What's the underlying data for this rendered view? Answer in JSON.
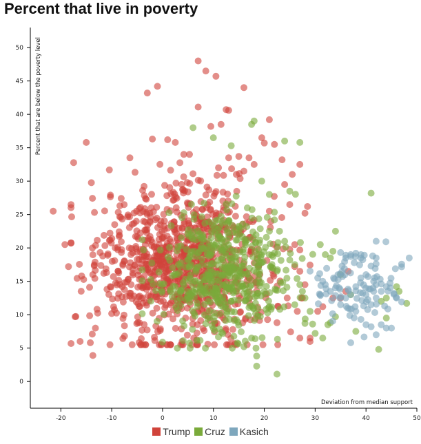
{
  "chart_data": {
    "type": "scatter",
    "title": "Percent that live in poverty",
    "xlabel": "Deviation from median support",
    "ylabel": "Percent that are below the poverty level",
    "xlim": [
      -26,
      50
    ],
    "ylim": [
      -4,
      53
    ],
    "xticks": [
      -20,
      -10,
      0,
      10,
      20,
      30,
      40,
      50
    ],
    "yticks": [
      0,
      5,
      10,
      15,
      20,
      25,
      30,
      35,
      40,
      45,
      50
    ],
    "colors": {
      "Trump": "#d0433a",
      "Cruz": "#7aaa3a",
      "Kasich": "#7ea7bd"
    },
    "legend": [
      {
        "name": "Trump",
        "color": "#d0433a"
      },
      {
        "name": "Cruz",
        "color": "#7aaa3a"
      },
      {
        "name": "Kasich",
        "color": "#7ea7bd"
      }
    ],
    "clouds": [
      {
        "series": "Trump",
        "n": 1000,
        "cx": 3.5,
        "cy": 17.5,
        "sx": 8.5,
        "sy": 6.2,
        "xmin": -18,
        "xmax": 29,
        "ymin": 5.5,
        "ymax": 34
      },
      {
        "series": "Cruz",
        "n": 520,
        "cx": 12,
        "cy": 16,
        "sx": 6.5,
        "sy": 4.5,
        "xmin": -4,
        "xmax": 31,
        "ymin": 5,
        "ymax": 30
      },
      {
        "series": "Kasich",
        "n": 85,
        "cx": 38,
        "cy": 14,
        "sx": 4.5,
        "sy": 3.3,
        "xmin": 29,
        "xmax": 47,
        "ymin": 5.5,
        "ymax": 21
      }
    ],
    "points": {
      "Trump": [
        [
          -21.5,
          25.5
        ],
        [
          -19.2,
          20.5
        ],
        [
          -18.5,
          17.2
        ],
        [
          -15,
          35.8
        ],
        [
          -13.7,
          3.9
        ],
        [
          -14.2,
          5.8
        ],
        [
          -16.2,
          6.0
        ],
        [
          -17.2,
          9.7
        ],
        [
          -13.2,
          8.0
        ],
        [
          -3,
          43.2
        ],
        [
          -1,
          44.2
        ],
        [
          7,
          48
        ],
        [
          8.5,
          46.5
        ],
        [
          10.5,
          45.7
        ],
        [
          16,
          44
        ],
        [
          7,
          41.1
        ],
        [
          12.5,
          40.7
        ],
        [
          13,
          40.6
        ],
        [
          9.5,
          38.2
        ],
        [
          21,
          39.2
        ],
        [
          11.5,
          38.5
        ],
        [
          19.5,
          36.5
        ],
        [
          27,
          32.5
        ],
        [
          25.5,
          31
        ],
        [
          -2,
          36.3
        ],
        [
          1,
          36.2
        ],
        [
          2.5,
          35.8
        ],
        [
          20,
          35.7
        ],
        [
          23.5,
          33.2
        ],
        [
          24,
          29.5
        ],
        [
          25,
          26.5
        ],
        [
          28.5,
          26.2
        ],
        [
          28,
          25.2
        ],
        [
          21,
          25.5
        ],
        [
          26,
          20.5
        ],
        [
          27,
          19.7
        ],
        [
          25,
          19.8
        ],
        [
          26,
          17.2
        ],
        [
          27,
          16.5
        ],
        [
          28,
          14.5
        ],
        [
          24.5,
          12.5
        ],
        [
          27.5,
          12.5
        ],
        [
          26.5,
          10.5
        ],
        [
          22.5,
          8.8
        ],
        [
          27,
          6.5
        ],
        [
          29,
          6.5
        ],
        [
          30.5,
          10.5
        ],
        [
          31.5,
          11.2
        ],
        [
          33.5,
          12.5
        ],
        [
          35,
          12.5
        ],
        [
          36.5,
          16.5
        ],
        [
          36,
          13.5
        ],
        [
          13,
          33.5
        ],
        [
          15,
          33.7
        ],
        [
          17,
          33.5
        ],
        [
          18,
          32.5
        ],
        [
          16,
          31.5
        ],
        [
          14.5,
          31
        ],
        [
          11,
          32
        ],
        [
          22,
          35.5
        ]
      ],
      "Cruz": [
        [
          6,
          38
        ],
        [
          10,
          36.5
        ],
        [
          13.5,
          35.3
        ],
        [
          18,
          39
        ],
        [
          17.5,
          38.5
        ],
        [
          24,
          36
        ],
        [
          27,
          35.8
        ],
        [
          19.5,
          30
        ],
        [
          25,
          28.5
        ],
        [
          21,
          28
        ],
        [
          22,
          24.2
        ],
        [
          23,
          22.5
        ],
        [
          24,
          21
        ],
        [
          25,
          18.2
        ],
        [
          26,
          17.5
        ],
        [
          27,
          14.5
        ],
        [
          28,
          12.5
        ],
        [
          26,
          11.5
        ],
        [
          27.5,
          13.5
        ],
        [
          29,
          10.5
        ],
        [
          28,
          8.7
        ],
        [
          29.5,
          8.6
        ],
        [
          30,
          7.2
        ],
        [
          31.5,
          6.5
        ],
        [
          32.5,
          8.5
        ],
        [
          33,
          8.8
        ],
        [
          34,
          9.7
        ],
        [
          41,
          28.2
        ],
        [
          38,
          7.5
        ],
        [
          42.5,
          4.8
        ],
        [
          46.5,
          13.5
        ],
        [
          48,
          11.7
        ],
        [
          46,
          14.2
        ],
        [
          44,
          12.5
        ],
        [
          44,
          9.5
        ],
        [
          43,
          12
        ],
        [
          35,
          16
        ],
        [
          37,
          13
        ],
        [
          34,
          22.5
        ],
        [
          33.5,
          19.5
        ],
        [
          31,
          20.5
        ],
        [
          32,
          19
        ],
        [
          33,
          18.5
        ],
        [
          18.5,
          2.3
        ],
        [
          18.5,
          3.8
        ],
        [
          22.5,
          1.1
        ],
        [
          16,
          5.2
        ],
        [
          17.5,
          6.5
        ]
      ],
      "Kasich": [
        [
          34,
          14
        ],
        [
          35,
          19.3
        ],
        [
          36,
          18.5
        ],
        [
          37,
          19
        ],
        [
          38,
          19.2
        ],
        [
          39,
          18.5
        ],
        [
          39,
          19
        ],
        [
          42,
          21
        ],
        [
          42,
          18.5
        ],
        [
          40,
          16
        ],
        [
          39,
          15.5
        ],
        [
          38,
          14.2
        ],
        [
          37,
          13
        ],
        [
          36,
          12.5
        ],
        [
          35,
          11.5
        ],
        [
          38,
          10.5
        ],
        [
          39,
          9.3
        ],
        [
          40,
          8.5
        ],
        [
          41,
          8.2
        ],
        [
          42,
          7
        ],
        [
          43,
          8.5
        ],
        [
          44,
          8
        ],
        [
          45,
          8
        ],
        [
          48.5,
          18.5
        ],
        [
          46,
          12.5
        ],
        [
          45.5,
          13.2
        ],
        [
          44,
          14.2
        ],
        [
          43,
          13.5
        ],
        [
          42,
          12.5
        ],
        [
          41,
          11.5
        ],
        [
          40,
          13
        ],
        [
          41.5,
          13.5
        ],
        [
          43,
          14.6
        ],
        [
          41.5,
          15
        ],
        [
          42,
          14.5
        ],
        [
          37,
          5.8
        ],
        [
          32,
          14.5
        ],
        [
          33,
          13.5
        ],
        [
          31.5,
          15
        ],
        [
          30.5,
          15.5
        ],
        [
          31,
          13
        ]
      ]
    }
  }
}
